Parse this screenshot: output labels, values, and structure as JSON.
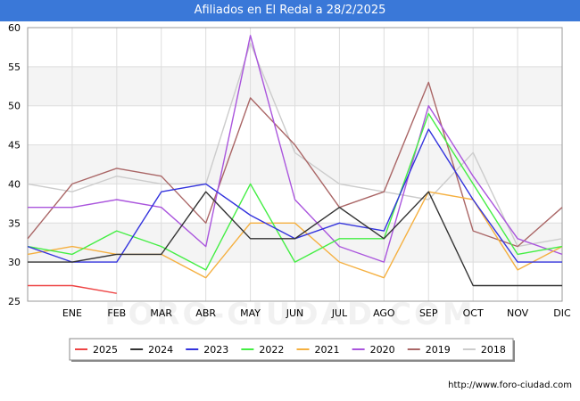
{
  "header": {
    "title": "Afiliados en El Redal a 28/2/2025"
  },
  "footer": {
    "source": "http://www.foro-ciudad.com",
    "watermark": "FORO-CIUDAD.COM"
  },
  "chart_data": {
    "type": "line",
    "title": "Afiliados en El Redal a 28/2/2025",
    "xlabel": "",
    "ylabel": "",
    "categories": [
      "",
      "ENE",
      "FEB",
      "MAR",
      "ABR",
      "MAY",
      "JUN",
      "JUL",
      "AGO",
      "SEP",
      "OCT",
      "NOV",
      "DIC"
    ],
    "y_ticks": [
      25,
      30,
      35,
      40,
      45,
      50,
      55,
      60
    ],
    "ylim": [
      25,
      60
    ],
    "grid": true,
    "legend_position": "bottom",
    "series": [
      {
        "name": "2025",
        "color": "#ee4444",
        "values": [
          27,
          27,
          26,
          null,
          null,
          null,
          null,
          null,
          null,
          null,
          null,
          null,
          null
        ]
      },
      {
        "name": "2024",
        "color": "#333333",
        "values": [
          30,
          30,
          31,
          31,
          39,
          33,
          33,
          37,
          33,
          39,
          27,
          27,
          27
        ]
      },
      {
        "name": "2023",
        "color": "#3333dd",
        "values": [
          32,
          30,
          30,
          39,
          40,
          36,
          33,
          35,
          34,
          47,
          38,
          30,
          30
        ]
      },
      {
        "name": "2022",
        "color": "#44ee44",
        "values": [
          32,
          31,
          34,
          32,
          29,
          40,
          30,
          33,
          33,
          49,
          40,
          31,
          32
        ]
      },
      {
        "name": "2021",
        "color": "#f5b040",
        "values": [
          31,
          32,
          31,
          31,
          28,
          35,
          35,
          30,
          28,
          39,
          38,
          29,
          32
        ]
      },
      {
        "name": "2020",
        "color": "#aa55dd",
        "values": [
          37,
          37,
          38,
          37,
          32,
          59,
          38,
          32,
          30,
          50,
          41,
          33,
          31
        ]
      },
      {
        "name": "2019",
        "color": "#aa6666",
        "values": [
          33,
          40,
          42,
          41,
          35,
          51,
          45,
          37,
          39,
          53,
          34,
          32,
          37
        ]
      },
      {
        "name": "2018",
        "color": "#cccccc",
        "values": [
          40,
          39,
          41,
          40,
          40,
          58,
          44,
          40,
          39,
          38,
          44,
          32,
          33
        ]
      }
    ]
  }
}
